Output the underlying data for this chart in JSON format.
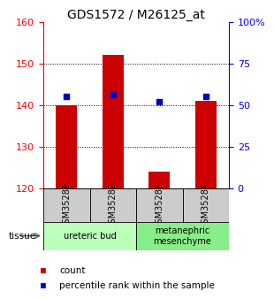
{
  "title": "GDS1572 / M26125_at",
  "samples": [
    "GSM35281",
    "GSM35282",
    "GSM35283",
    "GSM35284"
  ],
  "counts": [
    140,
    152,
    124,
    141
  ],
  "percentiles": [
    55,
    56,
    52,
    55
  ],
  "ylim_left": [
    120,
    160
  ],
  "ylim_right": [
    0,
    100
  ],
  "yticks_left": [
    120,
    130,
    140,
    150,
    160
  ],
  "yticks_right": [
    0,
    25,
    50,
    75,
    100
  ],
  "ytick_labels_right": [
    "0",
    "25",
    "50",
    "75",
    "100%"
  ],
  "bar_color": "#cc0000",
  "dot_color": "#0000cc",
  "bar_width": 0.45,
  "tissue_groups": [
    {
      "label": "ureteric bud",
      "samples": [
        0,
        1
      ],
      "color": "#bbffbb"
    },
    {
      "label": "metanephric\nmesenchyme",
      "samples": [
        2,
        3
      ],
      "color": "#88ee88"
    }
  ],
  "tissue_label": "tissue",
  "sample_bg_color": "#cccccc",
  "plot_bg": "#ffffff",
  "title_fontsize": 10,
  "tick_fontsize": 8,
  "legend_fontsize": 7.5,
  "sample_fontsize": 7,
  "tissue_fontsize": 7
}
